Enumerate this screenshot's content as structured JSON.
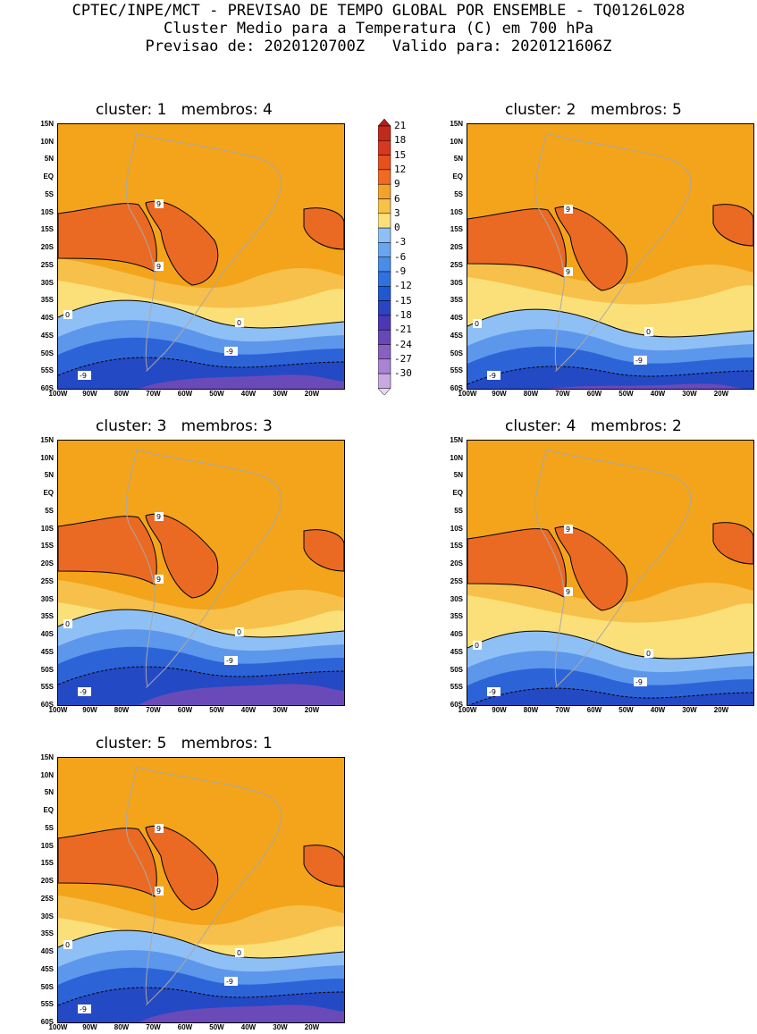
{
  "header": {
    "line1": "CPTEC/INPE/MCT - PREVISAO DE TEMPO GLOBAL POR ENSEMBLE - TQ0126L028",
    "line2": "Cluster Medio para a Temperatura (C) em 700 hPa",
    "line3": "Previsao de: 2020120700Z   Valido para: 2020121606Z"
  },
  "panels": [
    {
      "title": "cluster: 1   membros: 4"
    },
    {
      "title": "cluster: 2   membros: 5"
    },
    {
      "title": "cluster: 3   membros: 3"
    },
    {
      "title": "cluster: 4   membros: 2"
    },
    {
      "title": "cluster: 5   membros: 1"
    }
  ],
  "lat_labels": [
    "15N",
    "10N",
    "5N",
    "EQ",
    "5S",
    "10S",
    "15S",
    "20S",
    "25S",
    "30S",
    "35S",
    "40S",
    "45S",
    "50S",
    "55S",
    "60S"
  ],
  "lon_labels": [
    "100W",
    "90W",
    "80W",
    "70W",
    "60W",
    "50W",
    "40W",
    "30W",
    "20W"
  ],
  "colorbar": {
    "labels": [
      "21",
      "18",
      "15",
      "12",
      "9",
      "6",
      "3",
      "0",
      "-3",
      "-6",
      "-9",
      "-12",
      "-15",
      "-18",
      "-21",
      "-24",
      "-27",
      "-30"
    ],
    "colors": [
      "#c02a1c",
      "#d7381e",
      "#e8501e",
      "#f06a24",
      "#f4a22a",
      "#f7c24a",
      "#fbe07a",
      "#8fc0f5",
      "#6aa6ef",
      "#4a8ce8",
      "#2f72df",
      "#2058d0",
      "#2c44c2",
      "#4a38b6",
      "#6848b8",
      "#8860c4",
      "#a884d2",
      "#c9a9e2"
    ],
    "top_color": "#b0201a",
    "bottom_color": "#e6d8f0"
  },
  "contour_labels": {
    "nine": "9",
    "zero": "0",
    "minus_nine": "-9"
  },
  "colors": {
    "warm_dark": "#ea6a23",
    "warm_mid": "#f3a41a",
    "warm_light": "#f7c04a",
    "warm_pale": "#fbe07a",
    "cool_light": "#8fc0f5",
    "cool_mid": "#5d97ec",
    "cool_deep": "#2c64d8",
    "cool_deeper": "#2449c4",
    "purple": "#6a4ab8",
    "land_line": "#a8a8a8"
  }
}
